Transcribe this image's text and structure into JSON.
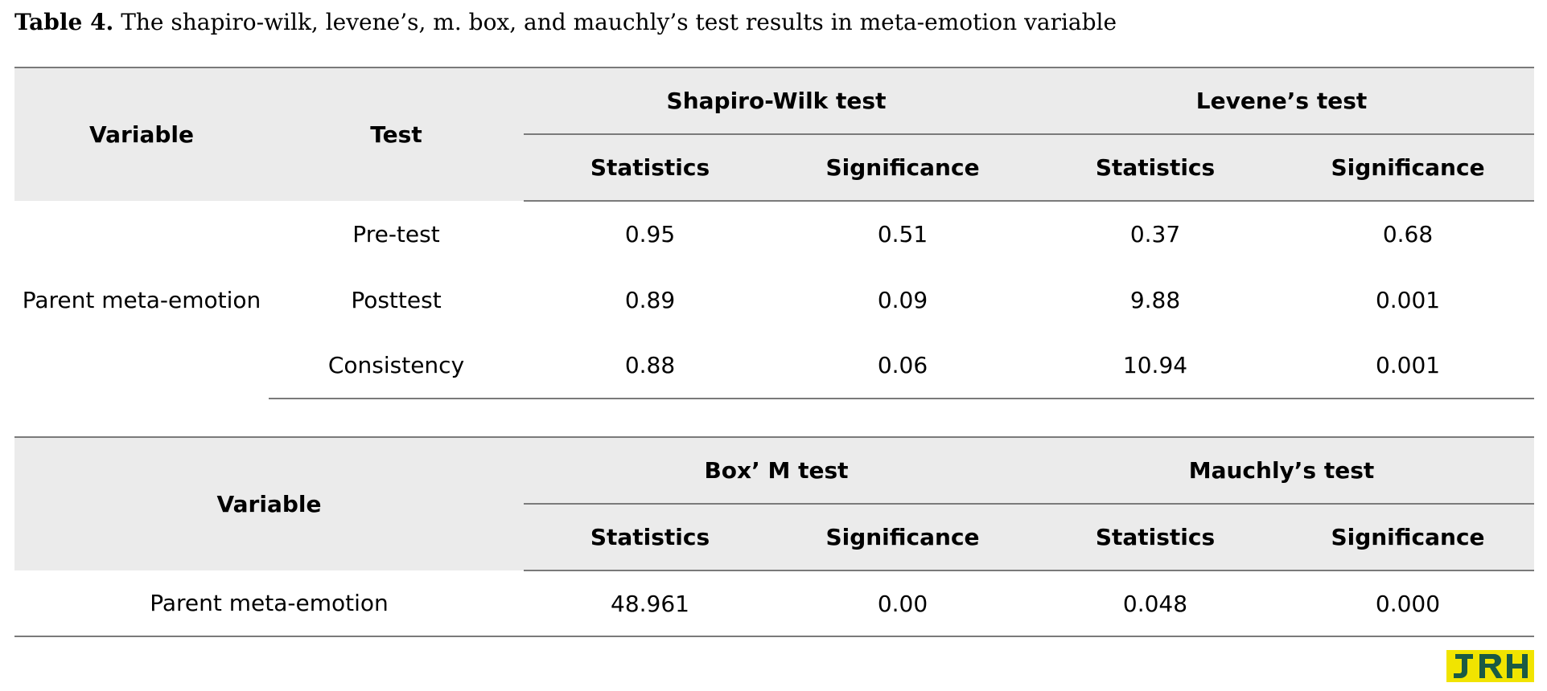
{
  "caption": {
    "label": "Table 4.",
    "text": " The shapiro-wilk, levene’s, m. box, and mauchly’s test results in meta-emotion variable"
  },
  "table1": {
    "header_variable": "Variable",
    "header_test": "Test",
    "group1": "Shapiro-Wilk test",
    "group2": "Levene’s test",
    "sub1": "Statistics",
    "sub2": "Significance",
    "sub3": "Statistics",
    "sub4": "Significance",
    "variable": "Parent meta-emotion",
    "rows": [
      {
        "test": "Pre-test",
        "sw_stat": "0.95",
        "sw_sig": "0.51",
        "lev_stat": "0.37",
        "lev_sig": "0.68"
      },
      {
        "test": "Posttest",
        "sw_stat": "0.89",
        "sw_sig": "0.09",
        "lev_stat": "9.88",
        "lev_sig": "0.001"
      },
      {
        "test": "Consistency",
        "sw_stat": "0.88",
        "sw_sig": "0.06",
        "lev_stat": "10.94",
        "lev_sig": "0.001"
      }
    ]
  },
  "table2": {
    "header_variable": "Variable",
    "group1": "Box’ M test",
    "group2": "Mauchly’s test",
    "sub1": "Statistics",
    "sub2": "Significance",
    "sub3": "Statistics",
    "sub4": "Significance",
    "row": {
      "variable": "Parent meta-emotion",
      "box_stat": "48.961",
      "box_sig": "0.00",
      "mau_stat": "0.048",
      "mau_sig": "0.000"
    }
  },
  "logo": {
    "name": "journal-logo",
    "colors": {
      "background": "#f1e400",
      "foreground": "#1a5a44"
    }
  }
}
